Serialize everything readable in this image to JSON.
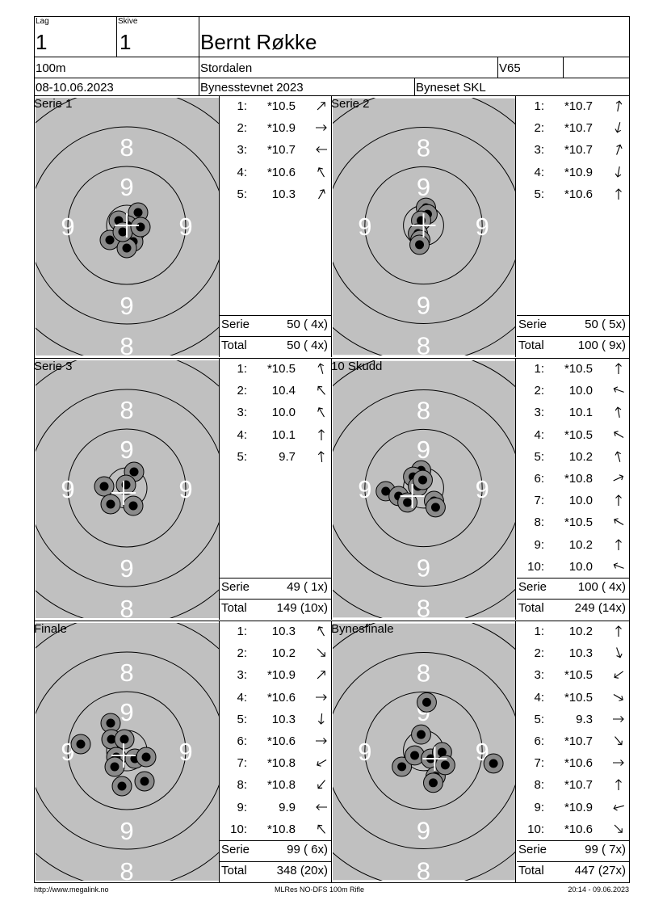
{
  "header": {
    "lag_label": "Lag",
    "lag_value": "1",
    "skive_label": "Skive",
    "skive_value": "1",
    "shooter_name": "Bernt Røkke",
    "distance": "100m",
    "club": "Stordalen",
    "class": "V65",
    "dates": "08-10.06.2023",
    "event": "Bynesstevnet 2023",
    "organizer": "Byneset SKL"
  },
  "ring_labels": {
    "outer": "8",
    "inner": "9"
  },
  "panels": [
    {
      "title": "Serie 1",
      "shots": [
        {
          "n": "1:",
          "v": "*10.5",
          "dir": 45
        },
        {
          "n": "2:",
          "v": "*10.9",
          "dir": 90
        },
        {
          "n": "3:",
          "v": "*10.7",
          "dir": 270
        },
        {
          "n": "4:",
          "v": "*10.6",
          "dir": 330
        },
        {
          "n": "5:",
          "v": "10.3",
          "dir": 30
        }
      ],
      "serie_label": "Serie",
      "serie_value": "50 ( 4x)",
      "total_label": "Total",
      "total_value": "50 ( 4x)"
    },
    {
      "title": "Serie 2",
      "shots": [
        {
          "n": "1:",
          "v": "*10.7",
          "dir": 10
        },
        {
          "n": "2:",
          "v": "*10.7",
          "dir": 195
        },
        {
          "n": "3:",
          "v": "*10.7",
          "dir": 20
        },
        {
          "n": "4:",
          "v": "*10.9",
          "dir": 190
        },
        {
          "n": "5:",
          "v": "*10.6",
          "dir": 0
        }
      ],
      "serie_label": "Serie",
      "serie_value": "50 ( 5x)",
      "total_label": "Total",
      "total_value": "100 ( 9x)"
    },
    {
      "title": "Serie 3",
      "shots": [
        {
          "n": "1:",
          "v": "*10.5",
          "dir": 345
        },
        {
          "n": "2:",
          "v": "10.4",
          "dir": 320
        },
        {
          "n": "3:",
          "v": "10.0",
          "dir": 330
        },
        {
          "n": "4:",
          "v": "10.1",
          "dir": 0
        },
        {
          "n": "5:",
          "v": "9.7",
          "dir": 355
        }
      ],
      "serie_label": "Serie",
      "serie_value": "49 ( 1x)",
      "total_label": "Total",
      "total_value": "149 (10x)"
    },
    {
      "title": "10 Skudd",
      "shots": [
        {
          "n": "1:",
          "v": "*10.5",
          "dir": 0
        },
        {
          "n": "2:",
          "v": "10.0",
          "dir": 290
        },
        {
          "n": "3:",
          "v": "10.1",
          "dir": 350
        },
        {
          "n": "4:",
          "v": "*10.5",
          "dir": 300
        },
        {
          "n": "5:",
          "v": "10.2",
          "dir": 345
        },
        {
          "n": "6:",
          "v": "*10.8",
          "dir": 65
        },
        {
          "n": "7:",
          "v": "10.0",
          "dir": 0
        },
        {
          "n": "8:",
          "v": "*10.5",
          "dir": 300
        },
        {
          "n": "9:",
          "v": "10.2",
          "dir": 0
        },
        {
          "n": "10:",
          "v": "10.0",
          "dir": 290
        }
      ],
      "serie_label": "Serie",
      "serie_value": "100 ( 4x)",
      "total_label": "Total",
      "total_value": "249 (14x)"
    },
    {
      "title": "Finale",
      "shots": [
        {
          "n": "1:",
          "v": "10.3",
          "dir": 330
        },
        {
          "n": "2:",
          "v": "10.2",
          "dir": 135
        },
        {
          "n": "3:",
          "v": "*10.9",
          "dir": 45
        },
        {
          "n": "4:",
          "v": "*10.6",
          "dir": 90
        },
        {
          "n": "5:",
          "v": "10.3",
          "dir": 185
        },
        {
          "n": "6:",
          "v": "*10.6",
          "dir": 90
        },
        {
          "n": "7:",
          "v": "*10.8",
          "dir": 240
        },
        {
          "n": "8:",
          "v": "*10.8",
          "dir": 220
        },
        {
          "n": "9:",
          "v": "9.9",
          "dir": 270
        },
        {
          "n": "10:",
          "v": "*10.8",
          "dir": 320
        }
      ],
      "serie_label": "Serie",
      "serie_value": "99 ( 6x)",
      "total_label": "Total",
      "total_value": "348 (20x)"
    },
    {
      "title": "Bynesfinale",
      "shots": [
        {
          "n": "1:",
          "v": "10.2",
          "dir": 0
        },
        {
          "n": "2:",
          "v": "10.3",
          "dir": 160
        },
        {
          "n": "3:",
          "v": "*10.5",
          "dir": 235
        },
        {
          "n": "4:",
          "v": "*10.5",
          "dir": 120
        },
        {
          "n": "5:",
          "v": "9.3",
          "dir": 90
        },
        {
          "n": "6:",
          "v": "*10.7",
          "dir": 140
        },
        {
          "n": "7:",
          "v": "*10.6",
          "dir": 90
        },
        {
          "n": "8:",
          "v": "*10.7",
          "dir": 0
        },
        {
          "n": "9:",
          "v": "*10.9",
          "dir": 255
        },
        {
          "n": "10:",
          "v": "*10.6",
          "dir": 135
        }
      ],
      "serie_label": "Serie",
      "serie_value": "99 ( 7x)",
      "total_label": "Total",
      "total_value": "447 (27x)"
    }
  ],
  "footer": {
    "left": "http://www.megalink.no",
    "center": "MLRes NO-DFS 100m Rifle",
    "right": "20:14 - 09.06.2023"
  }
}
